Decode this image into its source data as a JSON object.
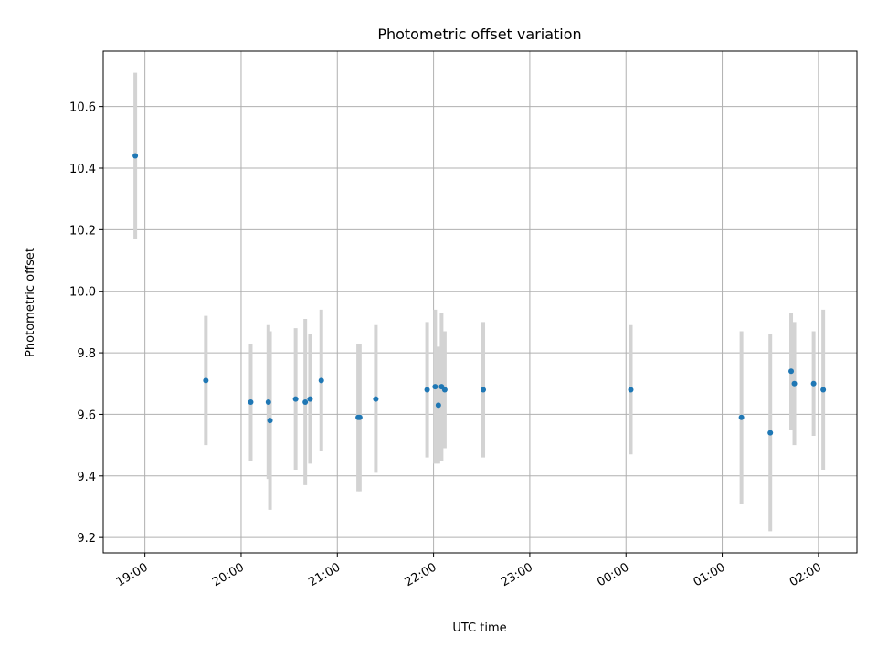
{
  "chart_data": {
    "type": "scatter",
    "title": "Photometric offset variation",
    "xlabel": "UTC time",
    "ylabel": "Photometric offset",
    "ylim": [
      9.15,
      10.78
    ],
    "yticks": [
      "9.2",
      "9.4",
      "9.6",
      "9.8",
      "10.0",
      "10.2",
      "10.4",
      "10.6"
    ],
    "xlim": [
      "18:34",
      "02:24"
    ],
    "xticks": [
      "19:00",
      "20:00",
      "21:00",
      "22:00",
      "23:00",
      "00:00",
      "01:00",
      "02:00"
    ],
    "xtick_rotation_deg": 30,
    "grid": true,
    "colors": {
      "points": "#1f77b4",
      "errorbars": "#d3d3d3"
    },
    "points": [
      {
        "x": "18:54",
        "y": 10.44,
        "err": 0.27
      },
      {
        "x": "19:38",
        "y": 9.71,
        "err": 0.21
      },
      {
        "x": "20:06",
        "y": 9.64,
        "err": 0.19
      },
      {
        "x": "20:17",
        "y": 9.64,
        "err": 0.25
      },
      {
        "x": "20:18",
        "y": 9.58,
        "err": 0.29
      },
      {
        "x": "20:34",
        "y": 9.65,
        "err": 0.23
      },
      {
        "x": "20:40",
        "y": 9.64,
        "err": 0.27
      },
      {
        "x": "20:43",
        "y": 9.65,
        "err": 0.21
      },
      {
        "x": "20:50",
        "y": 9.71,
        "err": 0.23
      },
      {
        "x": "21:13",
        "y": 9.59,
        "err": 0.24
      },
      {
        "x": "21:14",
        "y": 9.59,
        "err": 0.24
      },
      {
        "x": "21:24",
        "y": 9.65,
        "err": 0.24
      },
      {
        "x": "21:56",
        "y": 9.68,
        "err": 0.22
      },
      {
        "x": "22:01",
        "y": 9.69,
        "err": 0.25
      },
      {
        "x": "22:03",
        "y": 9.63,
        "err": 0.19
      },
      {
        "x": "22:05",
        "y": 9.69,
        "err": 0.24
      },
      {
        "x": "22:07",
        "y": 9.68,
        "err": 0.19
      },
      {
        "x": "22:31",
        "y": 9.68,
        "err": 0.22
      },
      {
        "x": "00:03",
        "y": 9.68,
        "err": 0.21
      },
      {
        "x": "01:12",
        "y": 9.59,
        "err": 0.28
      },
      {
        "x": "01:30",
        "y": 9.54,
        "err": 0.32
      },
      {
        "x": "01:43",
        "y": 9.74,
        "err": 0.19
      },
      {
        "x": "01:45",
        "y": 9.7,
        "err": 0.2
      },
      {
        "x": "01:57",
        "y": 9.7,
        "err": 0.17
      },
      {
        "x": "02:03",
        "y": 9.68,
        "err": 0.26
      }
    ]
  }
}
